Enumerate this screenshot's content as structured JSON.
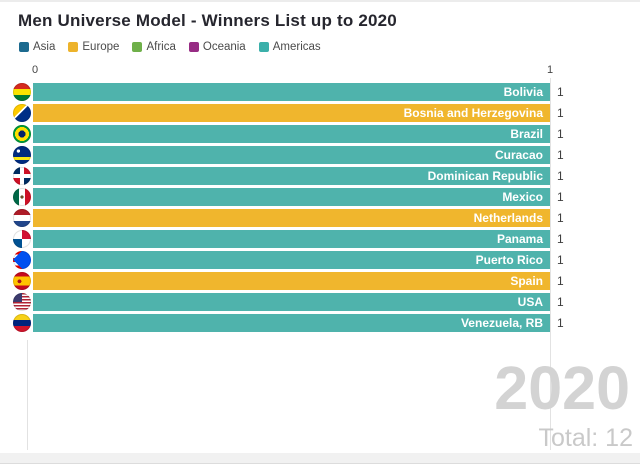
{
  "title": "Men Universe Model - Winners List up to 2020",
  "legend": {
    "items": [
      {
        "label": "Asia",
        "color": "#1c6a8f"
      },
      {
        "label": "Europe",
        "color": "#edb32b"
      },
      {
        "label": "Africa",
        "color": "#6fb04a"
      },
      {
        "label": "Oceania",
        "color": "#972c84"
      },
      {
        "label": "Americas",
        "color": "#3bb0aa"
      }
    ]
  },
  "axis": {
    "ticks": [
      "0",
      "1"
    ]
  },
  "rows": [
    {
      "country": "Bolivia",
      "value": "1",
      "continent": "Americas",
      "color": "#4fb3ac",
      "flag": "flag-bolivia-icon"
    },
    {
      "country": "Bosnia and Herzegovina",
      "value": "1",
      "continent": "Europe",
      "color": "#f0b62d",
      "flag": "flag-bosnia-and-herzegovina-icon"
    },
    {
      "country": "Brazil",
      "value": "1",
      "continent": "Americas",
      "color": "#4fb3ac",
      "flag": "flag-brazil-icon"
    },
    {
      "country": "Curacao",
      "value": "1",
      "continent": "Americas",
      "color": "#4fb3ac",
      "flag": "flag-curacao-icon"
    },
    {
      "country": "Dominican Republic",
      "value": "1",
      "continent": "Americas",
      "color": "#4fb3ac",
      "flag": "flag-dominican-republic-icon"
    },
    {
      "country": "Mexico",
      "value": "1",
      "continent": "Americas",
      "color": "#4fb3ac",
      "flag": "flag-mexico-icon"
    },
    {
      "country": "Netherlands",
      "value": "1",
      "continent": "Europe",
      "color": "#f0b62d",
      "flag": "flag-netherlands-icon"
    },
    {
      "country": "Panama",
      "value": "1",
      "continent": "Americas",
      "color": "#4fb3ac",
      "flag": "flag-panama-icon"
    },
    {
      "country": "Puerto Rico",
      "value": "1",
      "continent": "Americas",
      "color": "#4fb3ac",
      "flag": "flag-puerto-rico-icon"
    },
    {
      "country": "Spain",
      "value": "1",
      "continent": "Europe",
      "color": "#f0b62d",
      "flag": "flag-spain-icon"
    },
    {
      "country": "USA",
      "value": "1",
      "continent": "Americas",
      "color": "#4fb3ac",
      "flag": "flag-usa-icon"
    },
    {
      "country": "Venezuela, RB",
      "value": "1",
      "continent": "Americas",
      "color": "#4fb3ac",
      "flag": "flag-venezuela-icon"
    }
  ],
  "overlay": {
    "year": "2020",
    "total": "Total: 12"
  },
  "chart_data": {
    "type": "bar",
    "orientation": "horizontal",
    "title": "Men Universe Model - Winners List up to 2020",
    "categories": [
      "Bolivia",
      "Bosnia and Herzegovina",
      "Brazil",
      "Curacao",
      "Dominican Republic",
      "Mexico",
      "Netherlands",
      "Panama",
      "Puerto Rico",
      "Spain",
      "USA",
      "Venezuela, RB"
    ],
    "values": [
      1,
      1,
      1,
      1,
      1,
      1,
      1,
      1,
      1,
      1,
      1,
      1
    ],
    "groups": [
      "Americas",
      "Europe",
      "Americas",
      "Americas",
      "Americas",
      "Americas",
      "Europe",
      "Americas",
      "Americas",
      "Europe",
      "Americas",
      "Americas"
    ],
    "legend_entries": [
      "Asia",
      "Europe",
      "Africa",
      "Oceania",
      "Americas"
    ],
    "legend_position": "top-left",
    "legend_colors": {
      "Asia": "#1c6a8f",
      "Europe": "#edb32b",
      "Africa": "#6fb04a",
      "Oceania": "#972c84",
      "Americas": "#3bb0aa"
    },
    "xlim": [
      0,
      1
    ],
    "x_ticks": [
      0,
      1
    ],
    "grid": "vertical-end-tick-only",
    "value_labels": "outside-right",
    "bar_name_labels": "inside-right",
    "annotations": {
      "year": "2020",
      "total": "Total: 12"
    }
  }
}
